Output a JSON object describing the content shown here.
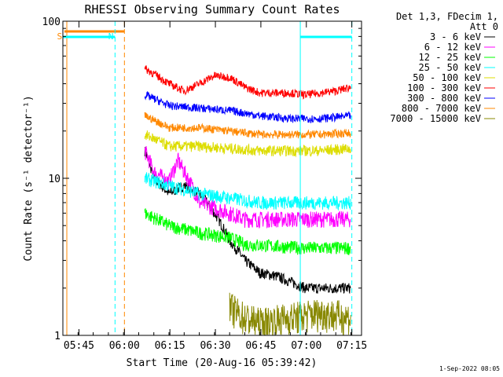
{
  "chart_data": {
    "type": "line",
    "title": "RHESSI Observing Summary Count Rates",
    "xlabel": "Start Time (20-Aug-16 05:39:42)",
    "ylabel": "Count Rate (s⁻¹ detector⁻¹)",
    "yscale": "log",
    "ylim": [
      1,
      100
    ],
    "xlim_minutes": [
      0,
      98.5
    ],
    "x_ticks": [
      {
        "label": "05:45",
        "minute": 5.3
      },
      {
        "label": "06:00",
        "minute": 20.3
      },
      {
        "label": "06:15",
        "minute": 35.3
      },
      {
        "label": "06:30",
        "minute": 50.3
      },
      {
        "label": "06:45",
        "minute": 65.3
      },
      {
        "label": "07:00",
        "minute": 80.3
      },
      {
        "label": "07:15",
        "minute": 95.3
      }
    ],
    "y_ticks": [
      {
        "label": "100",
        "value": 100
      },
      {
        "label": "10",
        "value": 10
      },
      {
        "label": "1",
        "value": 1
      }
    ],
    "legend_header": [
      "Det 1,3, FDecim 1,",
      "Att 0"
    ],
    "legend_position": "right",
    "series": [
      {
        "name": "3 - 6 keV",
        "color": "#000000",
        "points": [
          [
            27,
            15
          ],
          [
            30,
            10
          ],
          [
            35,
            8
          ],
          [
            40,
            9
          ],
          [
            45,
            8
          ],
          [
            50,
            6
          ],
          [
            55,
            4
          ],
          [
            60,
            3
          ],
          [
            65,
            2.5
          ],
          [
            70,
            2.4
          ],
          [
            75,
            2.2
          ],
          [
            80,
            2.0
          ],
          [
            85,
            2.0
          ],
          [
            90,
            2.0
          ],
          [
            95,
            2.0
          ]
        ]
      },
      {
        "name": "6 - 12 keV",
        "color": "#ff00ff",
        "points": [
          [
            27,
            15
          ],
          [
            30,
            11
          ],
          [
            35,
            9.5
          ],
          [
            38,
            13
          ],
          [
            40,
            11
          ],
          [
            45,
            7
          ],
          [
            50,
            6.5
          ],
          [
            55,
            6
          ],
          [
            60,
            5.5
          ],
          [
            65,
            5.5
          ],
          [
            70,
            5.5
          ],
          [
            75,
            5.5
          ],
          [
            80,
            5.5
          ],
          [
            85,
            5.5
          ],
          [
            90,
            5.5
          ],
          [
            95,
            5.5
          ]
        ]
      },
      {
        "name": "12 - 25 keV",
        "color": "#00ff00",
        "points": [
          [
            27,
            6
          ],
          [
            35,
            5
          ],
          [
            45,
            4.5
          ],
          [
            55,
            4.2
          ],
          [
            60,
            3.8
          ],
          [
            70,
            3.7
          ],
          [
            80,
            3.6
          ],
          [
            90,
            3.6
          ],
          [
            95,
            3.6
          ]
        ]
      },
      {
        "name": "25 - 50 keV",
        "color": "#00ffff",
        "points": [
          [
            27,
            10
          ],
          [
            35,
            9
          ],
          [
            45,
            8
          ],
          [
            55,
            7.5
          ],
          [
            65,
            7
          ],
          [
            75,
            7
          ],
          [
            85,
            7
          ],
          [
            95,
            7
          ]
        ]
      },
      {
        "name": "50 - 100 keV",
        "color": "#dddd00",
        "points": [
          [
            27,
            19
          ],
          [
            35,
            16
          ],
          [
            45,
            16
          ],
          [
            55,
            15.5
          ],
          [
            65,
            15
          ],
          [
            75,
            15
          ],
          [
            85,
            15
          ],
          [
            95,
            15.5
          ]
        ]
      },
      {
        "name": "100 - 300 keV",
        "color": "#ff0000",
        "points": [
          [
            27,
            50
          ],
          [
            35,
            40
          ],
          [
            40,
            36
          ],
          [
            45,
            40
          ],
          [
            50,
            45
          ],
          [
            55,
            44
          ],
          [
            60,
            38
          ],
          [
            65,
            35
          ],
          [
            70,
            35
          ],
          [
            75,
            35
          ],
          [
            80,
            34
          ],
          [
            85,
            35
          ],
          [
            90,
            36
          ],
          [
            95,
            38
          ]
        ]
      },
      {
        "name": "300 - 800 keV",
        "color": "#0000ff",
        "points": [
          [
            27,
            34
          ],
          [
            35,
            29
          ],
          [
            45,
            28
          ],
          [
            55,
            27
          ],
          [
            65,
            25
          ],
          [
            75,
            24
          ],
          [
            85,
            24
          ],
          [
            95,
            25
          ]
        ]
      },
      {
        "name": "800 - 7000 keV",
        "color": "#ff8800",
        "points": [
          [
            27,
            25
          ],
          [
            35,
            21
          ],
          [
            45,
            21
          ],
          [
            55,
            20
          ],
          [
            65,
            19
          ],
          [
            75,
            19
          ],
          [
            85,
            19
          ],
          [
            95,
            19.5
          ]
        ]
      },
      {
        "name": "7000 - 15000 keV",
        "color": "#888800",
        "points": [
          [
            55,
            1.5
          ],
          [
            60,
            1.3
          ],
          [
            65,
            1.2
          ],
          [
            75,
            1.3
          ],
          [
            85,
            1.4
          ],
          [
            95,
            1.3
          ]
        ]
      }
    ],
    "annotations": [
      {
        "label": "S",
        "minute": 0.3,
        "color": "#ff8800"
      },
      {
        "label": "N",
        "minute": 17.2,
        "color": "#00ffff"
      }
    ]
  },
  "timestamp": "1-Sep-2022 08:05"
}
